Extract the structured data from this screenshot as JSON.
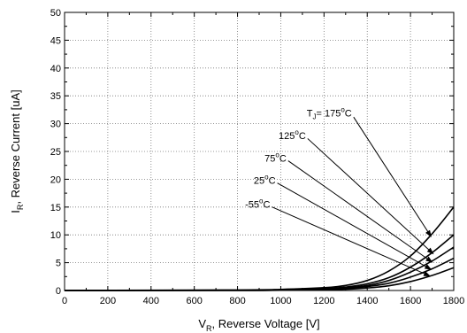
{
  "chart_data": {
    "type": "line",
    "xlabel": {
      "main": "V",
      "sub": "R",
      "rest": ", Reverse Voltage [V]"
    },
    "ylabel": {
      "main": "I",
      "sub": "R",
      "rest": ", Reverse Current [uA]"
    },
    "xlim": [
      0,
      1800
    ],
    "ylim": [
      0,
      50
    ],
    "x_ticks": [
      "0",
      "200",
      "400",
      "600",
      "800",
      "1000",
      "1200",
      "1400",
      "1600",
      "1800"
    ],
    "y_ticks": [
      "0",
      "5",
      "10",
      "15",
      "20",
      "25",
      "30",
      "35",
      "40",
      "45",
      "50"
    ],
    "grid": true,
    "series": [
      {
        "name": "175°C",
        "x": [
          0,
          800,
          1000,
          1200,
          1300,
          1400,
          1500,
          1600,
          1700,
          1800
        ],
        "y": [
          0,
          0.1,
          0.2,
          0.5,
          0.9,
          1.8,
          3.5,
          6.2,
          10.2,
          15.0
        ]
      },
      {
        "name": "125°C",
        "x": [
          0,
          800,
          1000,
          1200,
          1300,
          1400,
          1500,
          1600,
          1700,
          1800
        ],
        "y": [
          0,
          0.05,
          0.15,
          0.35,
          0.6,
          1.2,
          2.3,
          4.2,
          6.8,
          10.0
        ]
      },
      {
        "name": "75°C",
        "x": [
          0,
          800,
          1000,
          1200,
          1300,
          1400,
          1500,
          1600,
          1700,
          1800
        ],
        "y": [
          0,
          0.03,
          0.1,
          0.25,
          0.45,
          0.9,
          1.8,
          3.3,
          5.3,
          7.8
        ]
      },
      {
        "name": "25°C",
        "x": [
          0,
          800,
          1000,
          1200,
          1300,
          1400,
          1500,
          1600,
          1700,
          1800
        ],
        "y": [
          0,
          0.02,
          0.08,
          0.2,
          0.35,
          0.7,
          1.3,
          2.4,
          3.9,
          5.8
        ]
      },
      {
        "name": "-55°C",
        "x": [
          0,
          800,
          1000,
          1200,
          1300,
          1400,
          1500,
          1600,
          1700,
          1800
        ],
        "y": [
          0,
          0.01,
          0.05,
          0.12,
          0.22,
          0.45,
          0.85,
          1.6,
          2.7,
          4.1
        ]
      }
    ],
    "annotations": [
      {
        "text": "T",
        "sub": "J",
        "rest": "= 175",
        "sup": "o",
        "unit": "C",
        "label_x": 1120,
        "label_y": 31.3,
        "arrow_to_x": 1695,
        "arrow_to_y": 9.7
      },
      {
        "text": "125",
        "sup": "o",
        "unit": "C",
        "label_x": 990,
        "label_y": 27.2,
        "arrow_to_x": 1705,
        "arrow_to_y": 6.6
      },
      {
        "text": "75",
        "sup": "o",
        "unit": "C",
        "label_x": 925,
        "label_y": 23.2,
        "arrow_to_x": 1700,
        "arrow_to_y": 5.1
      },
      {
        "text": "25",
        "sup": "o",
        "unit": "C",
        "label_x": 875,
        "label_y": 19.2,
        "arrow_to_x": 1695,
        "arrow_to_y": 3.8
      },
      {
        "text": "-55",
        "sup": "o",
        "unit": "C",
        "label_x": 835,
        "label_y": 14.9,
        "arrow_to_x": 1690,
        "arrow_to_y": 2.6
      }
    ]
  }
}
